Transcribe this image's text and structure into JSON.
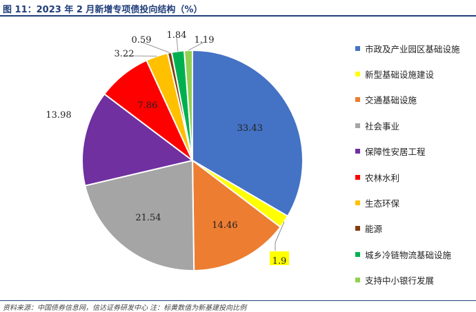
{
  "header": {
    "title": "图 11：2023 年 2 月新增专项债投向结构（%）"
  },
  "footer": {
    "source": "资料来源：中国债券信息网，信达证券研发中心 注：标黄数值为新基建投向比例"
  },
  "chart_data": {
    "type": "pie",
    "title": "",
    "start_angle_deg": 0,
    "direction": "clockwise",
    "legend_position": "right",
    "highlighted_label": "新型基础设施建设",
    "slices": [
      {
        "label": "市政及产业园区基础设施",
        "value": 33.43,
        "value_label": "33.43",
        "color": "#4472c4"
      },
      {
        "label": "新型基础设施建设",
        "value": 1.9,
        "value_label": "1.9",
        "color": "#ffff00"
      },
      {
        "label": "交通基础设施",
        "value": 14.46,
        "value_label": "14.46",
        "color": "#ed7d31"
      },
      {
        "label": "社会事业",
        "value": 21.54,
        "value_label": "21.54",
        "color": "#a5a5a5"
      },
      {
        "label": "保障性安居工程",
        "value": 13.98,
        "value_label": "13.98",
        "color": "#7030a0"
      },
      {
        "label": "农林水利",
        "value": 7.86,
        "value_label": "7.86",
        "color": "#ff0000"
      },
      {
        "label": "生态环保",
        "value": 3.22,
        "value_label": "3.22",
        "color": "#ffc000"
      },
      {
        "label": "能源",
        "value": 0.59,
        "value_label": "0.59",
        "color": "#843c0c"
      },
      {
        "label": "城乡冷链物流基础设施",
        "value": 1.84,
        "value_label": "1.84",
        "color": "#00b050"
      },
      {
        "label": "支持中小银行发展",
        "value": 1.19,
        "value_label": "1.19",
        "color": "#92d050"
      }
    ]
  }
}
